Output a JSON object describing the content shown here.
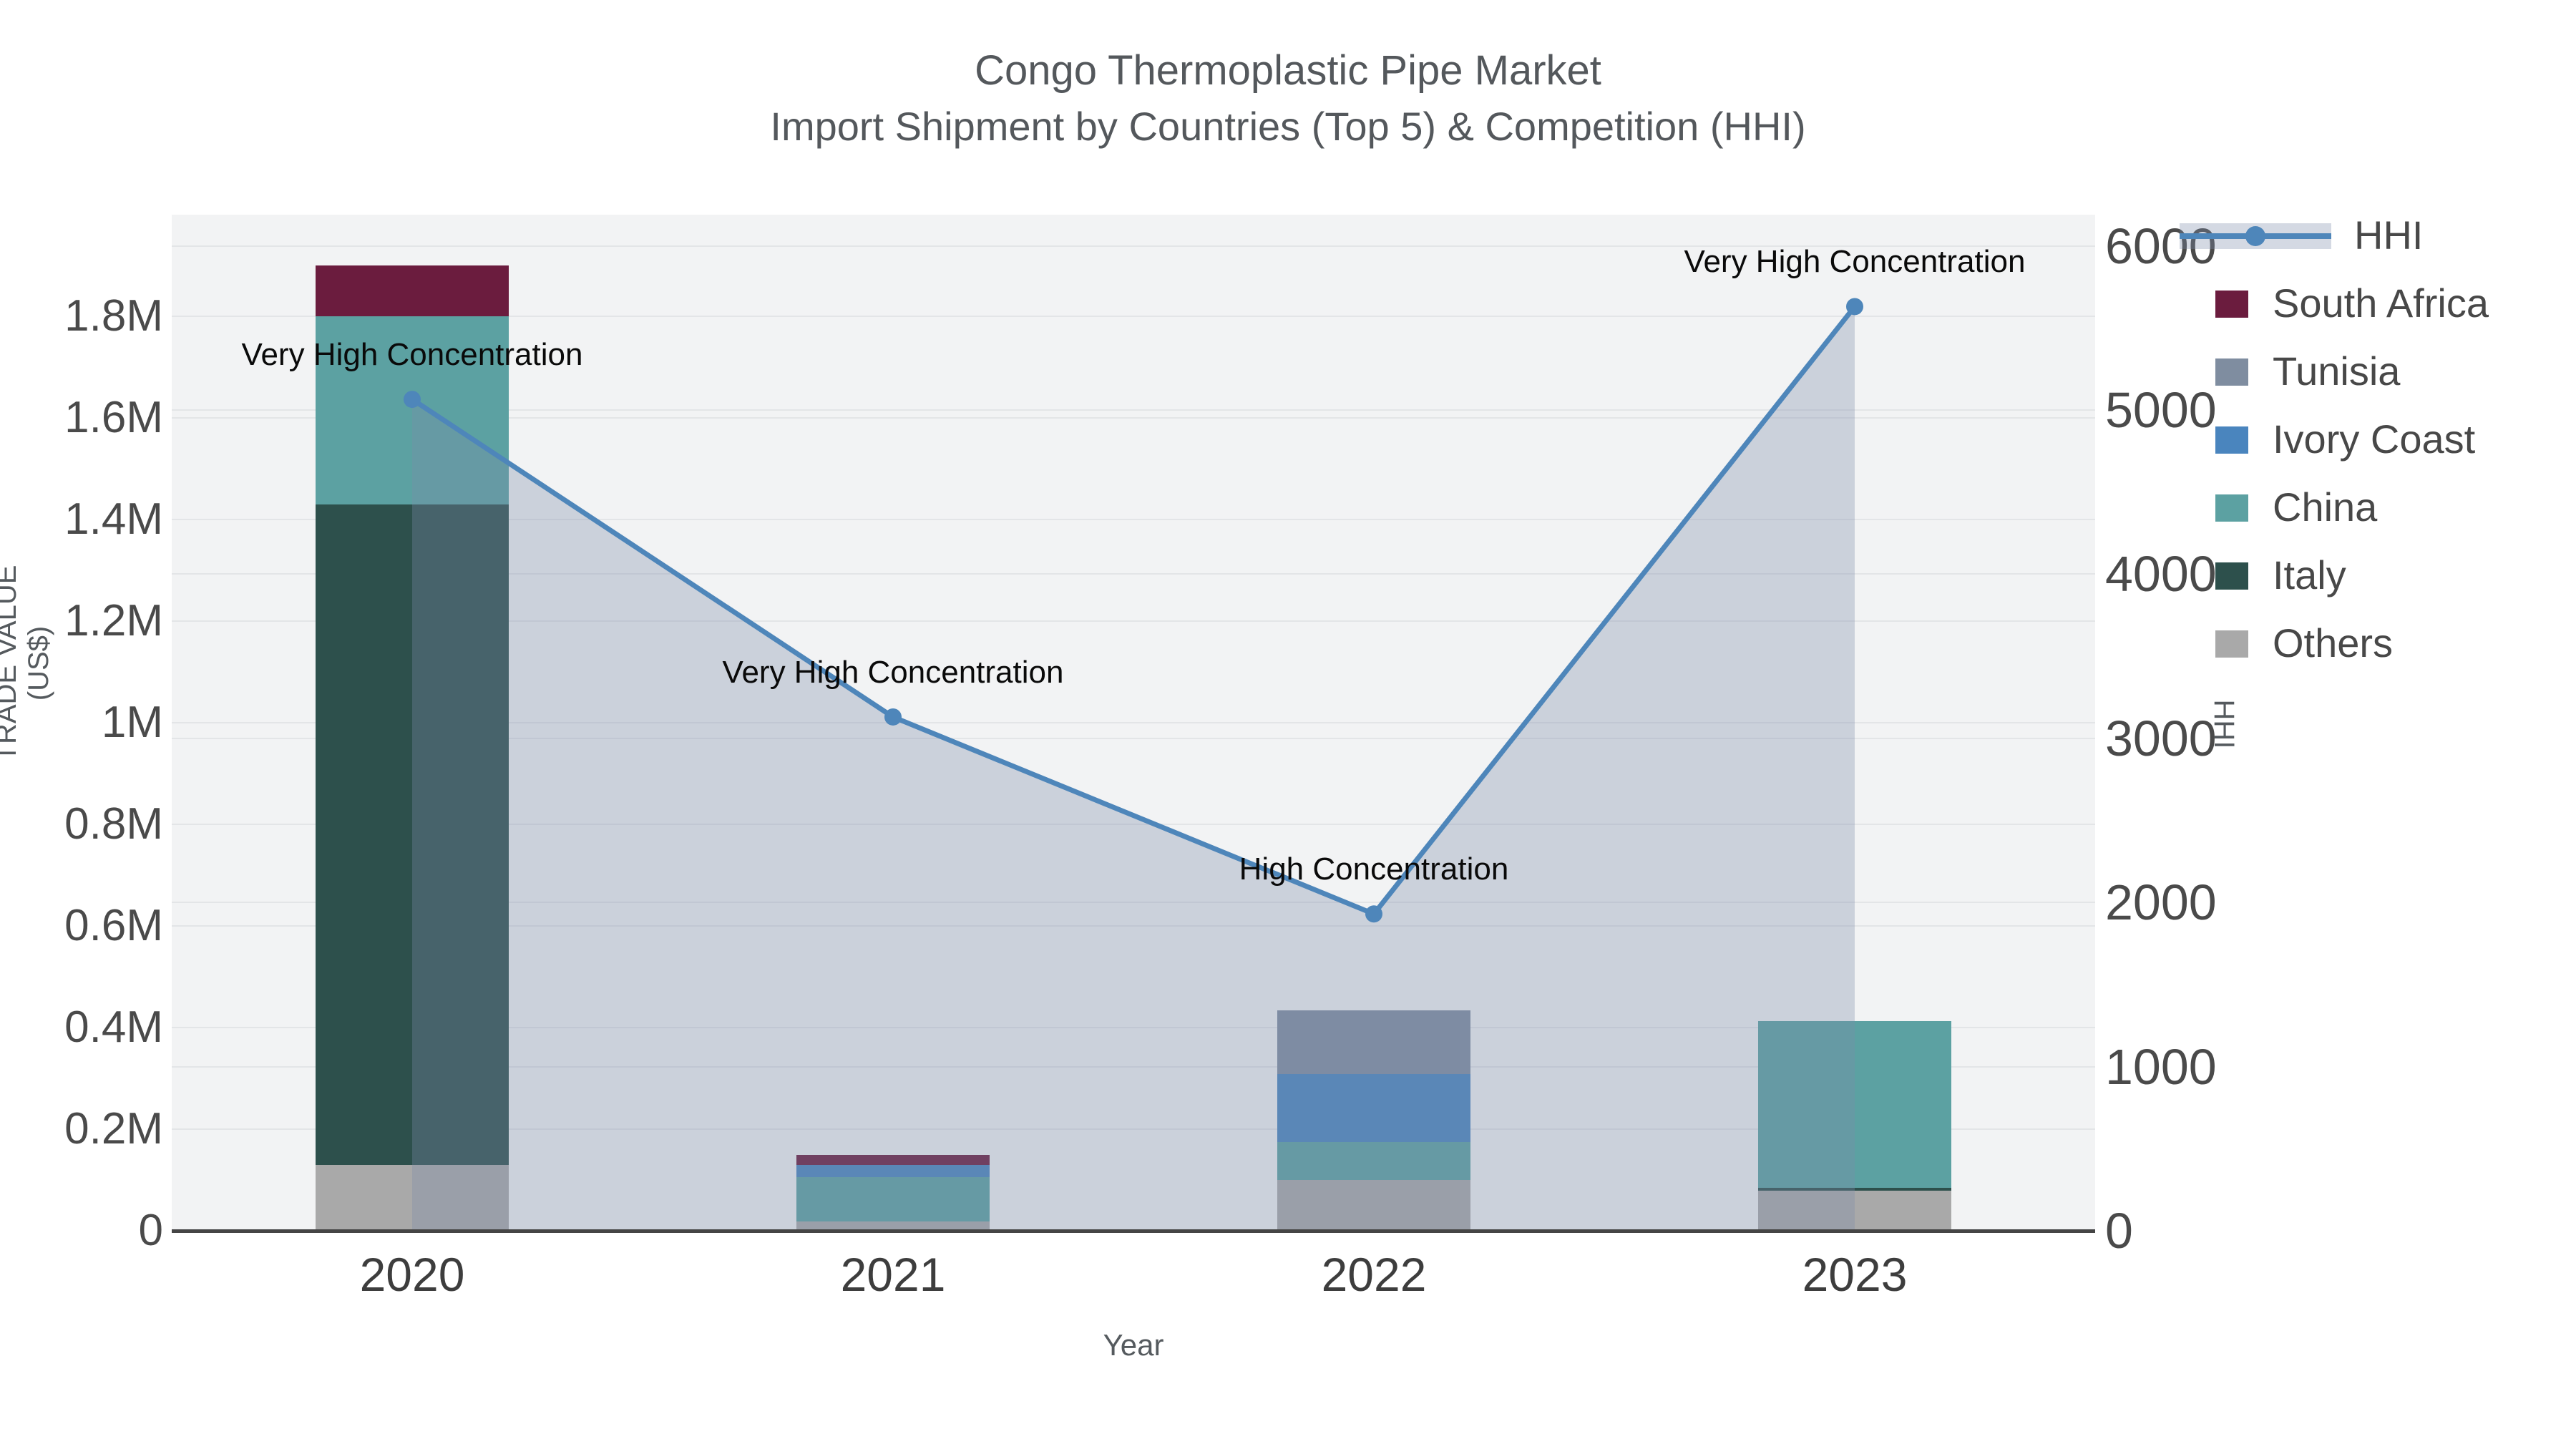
{
  "page": {
    "title_line1": "Congo Thermoplastic Pipe Market",
    "title_line2": "Import Shipment by Countries (Top 5) & Competition (HHI)"
  },
  "colors": {
    "plot_background": "#f2f3f4",
    "gridline": "#e3e5e7",
    "axis_line": "#454545",
    "title_text": "#54585c",
    "tick_text": "#4a4a4a",
    "annotation_text": "#0a0a0a",
    "hhi_line": "#4e86ba",
    "hhi_area_fill": "rgba(124,140,170,0.33)"
  },
  "chart_data": {
    "type": "bar+line",
    "title": "Congo Thermoplastic Pipe Market — Import Shipment by Countries (Top 5) & Competition (HHI)",
    "categories": [
      "2020",
      "2021",
      "2022",
      "2023"
    ],
    "x_axis": {
      "title": "Year"
    },
    "y_left_axis": {
      "title": "TRADE VALUE (US$)",
      "tick_labels": [
        "0",
        "0.2M",
        "0.4M",
        "0.6M",
        "0.8M",
        "1M",
        "1.2M",
        "1.4M",
        "1.6M",
        "1.8M"
      ],
      "tick_values": [
        0,
        200000,
        400000,
        600000,
        800000,
        1000000,
        1200000,
        1400000,
        1600000,
        1800000
      ],
      "range": [
        0,
        2000000
      ],
      "grid": true
    },
    "y_right_axis": {
      "title": "HHI",
      "tick_labels": [
        "0",
        "1000",
        "2000",
        "3000",
        "4000",
        "5000",
        "6000"
      ],
      "tick_values": [
        0,
        1000,
        2000,
        3000,
        4000,
        5000,
        6000
      ],
      "range": [
        0,
        6190
      ],
      "grid": true
    },
    "bar_series": [
      {
        "name": "South Africa",
        "color": "#6b1c3e",
        "values": [
          100000,
          19000,
          0,
          0
        ]
      },
      {
        "name": "Tunisia",
        "color": "#7f8da0",
        "values": [
          0,
          0,
          126000,
          0
        ]
      },
      {
        "name": "Ivory Coast",
        "color": "#4a85be",
        "values": [
          0,
          24000,
          134000,
          0
        ]
      },
      {
        "name": "China",
        "color": "#5ca1a2",
        "values": [
          370000,
          88000,
          74000,
          328000
        ]
      },
      {
        "name": "Italy",
        "color": "#2d504c",
        "values": [
          1300000,
          0,
          0,
          6000
        ]
      },
      {
        "name": "Others",
        "color": "#a9a9a9",
        "values": [
          130000,
          18000,
          100000,
          79000
        ]
      }
    ],
    "stack_order_bottom_to_top": [
      "Others",
      "Italy",
      "China",
      "Ivory Coast",
      "Tunisia",
      "South Africa"
    ],
    "line_series": {
      "name": "HHI",
      "color": "#4e86ba",
      "marker": "circle-marker",
      "area_fill": "rgba(124,140,170,0.33)",
      "values": [
        5065,
        3130,
        1930,
        5630
      ]
    },
    "annotations": [
      {
        "category": "2020",
        "text": "Very High Concentration"
      },
      {
        "category": "2021",
        "text": "Very High Concentration"
      },
      {
        "category": "2022",
        "text": "High Concentration"
      },
      {
        "category": "2023",
        "text": "Very High Concentration"
      }
    ],
    "legend": {
      "position": "right",
      "items": [
        "HHI",
        "South Africa",
        "Tunisia",
        "Ivory Coast",
        "China",
        "Italy",
        "Others"
      ]
    }
  }
}
